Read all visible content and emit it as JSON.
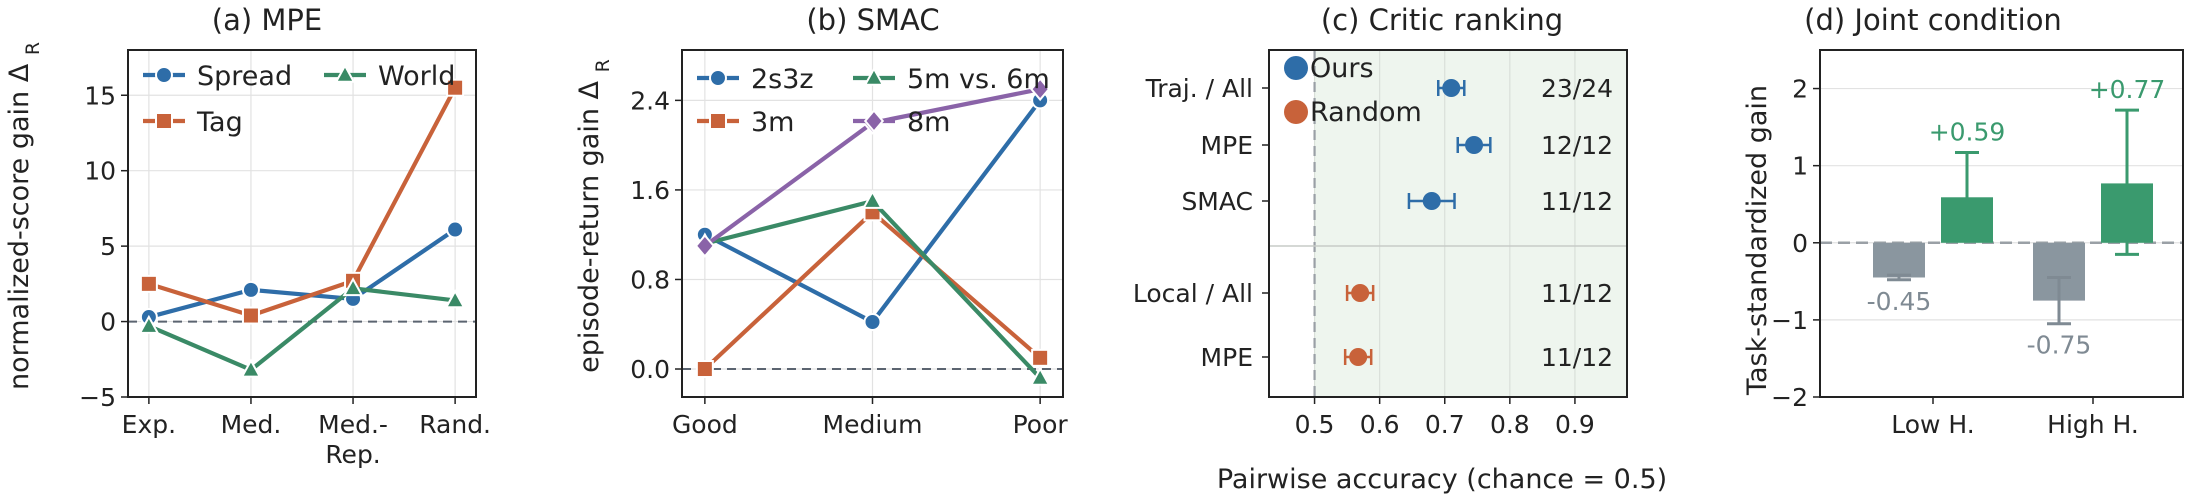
{
  "chart_data": [
    {
      "type": "line",
      "title": "(a) MPE",
      "xlabel": "",
      "ylabel": "normalized-score gain Δ_R",
      "categories": [
        "Exp.",
        "Med.",
        "Med.-\nRep.",
        "Rand."
      ],
      "category_lines": [
        [
          "Exp."
        ],
        [
          "Med."
        ],
        [
          "Med.-",
          "Rep."
        ],
        [
          "Rand."
        ]
      ],
      "yticks": [
        -5,
        0,
        5,
        10,
        15
      ],
      "ylim": [
        -5,
        18
      ],
      "grid": true,
      "legend_position": "top-left",
      "series": [
        {
          "name": "Spread",
          "color": "#2e6da8",
          "marker": "circle",
          "values": [
            0.3,
            2.1,
            1.5,
            6.1
          ]
        },
        {
          "name": "Tag",
          "color": "#c8623a",
          "marker": "square",
          "values": [
            2.5,
            0.4,
            2.7,
            15.5
          ]
        },
        {
          "name": "World",
          "color": "#3a8a66",
          "marker": "triangle",
          "values": [
            -0.3,
            -3.2,
            2.2,
            1.4
          ]
        }
      ],
      "reference_line": 0
    },
    {
      "type": "line",
      "title": "(b) SMAC",
      "xlabel": "",
      "ylabel": "episode-return gain Δ_R",
      "categories": [
        "Good",
        "Medium",
        "Poor"
      ],
      "yticks": [
        0.0,
        0.8,
        1.6,
        2.4
      ],
      "ytick_labels": [
        "0.0",
        "0.8",
        "1.6",
        "2.4"
      ],
      "ylim": [
        -0.25,
        2.85
      ],
      "grid": true,
      "legend_position": "top-left",
      "series": [
        {
          "name": "2s3z",
          "color": "#2e6da8",
          "marker": "circle",
          "values": [
            1.2,
            0.42,
            2.4
          ]
        },
        {
          "name": "3m",
          "color": "#c8623a",
          "marker": "square",
          "values": [
            0.0,
            1.4,
            0.1
          ]
        },
        {
          "name": "5m vs. 6m",
          "color": "#3a8a66",
          "marker": "triangle",
          "values": [
            1.12,
            1.5,
            -0.08
          ]
        },
        {
          "name": "8m",
          "color": "#8a63a8",
          "marker": "diamond",
          "values": [
            1.1,
            2.2,
            2.5
          ]
        }
      ],
      "reference_line": 0
    },
    {
      "type": "scatter",
      "title": "(c) Critic ranking",
      "xlabel": "Pairwise accuracy (chance = 0.5)",
      "ylabel": "",
      "xticks": [
        0.5,
        0.6,
        0.7,
        0.8,
        0.9
      ],
      "xlim": [
        0.43,
        0.98
      ],
      "chance_line": 0.5,
      "grid": true,
      "legend_position": "top-left",
      "legend": [
        {
          "name": "Ours",
          "color": "#2e6da8"
        },
        {
          "name": "Random",
          "color": "#c8623a"
        }
      ],
      "rows": [
        {
          "label": "Traj. / All",
          "value": 0.71,
          "err": 0.02,
          "count": "23/24",
          "group": "Ours"
        },
        {
          "label": "MPE",
          "value": 0.745,
          "err": 0.025,
          "count": "12/12",
          "group": "Ours"
        },
        {
          "label": "SMAC",
          "value": 0.68,
          "err": 0.035,
          "count": "11/12",
          "group": "Ours"
        },
        {
          "label": "Local / All",
          "value": 0.57,
          "err": 0.02,
          "count": "11/12",
          "group": "Random"
        },
        {
          "label": "MPE",
          "value": 0.567,
          "err": 0.02,
          "count": "11/12",
          "group": "Random"
        }
      ]
    },
    {
      "type": "bar",
      "title": "(d) Joint condition",
      "xlabel": "",
      "ylabel": "Task-standardized gain",
      "categories": [
        "Low H.",
        "High H."
      ],
      "yticks": [
        -2,
        -1,
        0,
        1,
        2
      ],
      "ylim": [
        -2,
        2.5
      ],
      "grid": true,
      "reference_line": 0,
      "series": [
        {
          "color": "#8a969f",
          "values": [
            -0.45,
            -0.75
          ],
          "err_low": [
            -0.48,
            -1.05
          ],
          "err_high": [
            -0.42,
            -0.45
          ],
          "labels": [
            "-0.45",
            "-0.75"
          ]
        },
        {
          "color": "#3a9a6e",
          "values": [
            0.59,
            0.77
          ],
          "err_low": [
            0.05,
            -0.15
          ],
          "err_high": [
            1.17,
            1.72
          ],
          "labels": [
            "+0.59",
            "+0.77"
          ]
        }
      ]
    }
  ]
}
